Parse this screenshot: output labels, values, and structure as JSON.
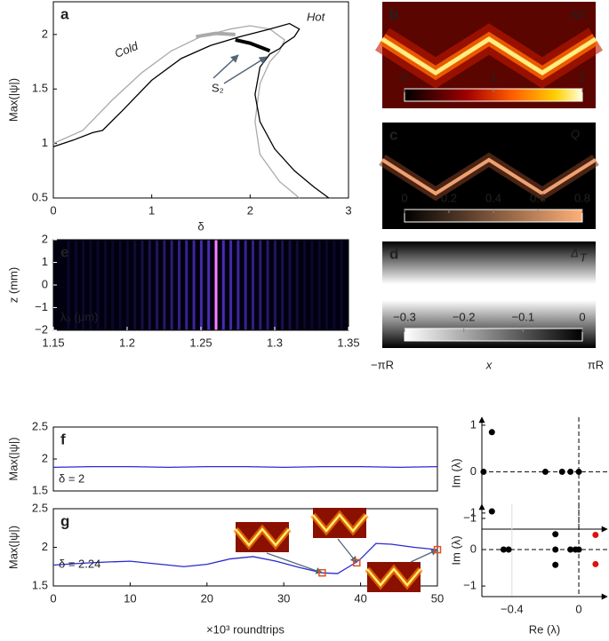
{
  "chart_data": [
    {
      "type": "line",
      "label": "a",
      "xlabel": "δ",
      "ylabel": "Max(|ψ|)",
      "xlim": [
        0,
        3
      ],
      "xticks": [
        0,
        1,
        2,
        3
      ],
      "ylim": [
        0.5,
        2.3
      ],
      "yticks": [
        0.5,
        1,
        1.5,
        2
      ],
      "annotations": [
        "Cold",
        "Hot",
        "S₂"
      ],
      "series": [
        {
          "name": "Cold",
          "color": "#aaaaaa",
          "x": [
            0,
            0.3,
            0.6,
            0.9,
            1.2,
            1.5,
            1.8,
            2.0,
            2.2,
            2.35,
            2.3,
            2.2,
            2.1,
            2.05,
            2.1,
            2.3,
            2.5
          ],
          "values": [
            1.0,
            1.12,
            1.4,
            1.65,
            1.85,
            1.98,
            2.05,
            2.08,
            2.05,
            1.95,
            1.85,
            1.75,
            1.55,
            1.2,
            0.9,
            0.65,
            0.5
          ]
        },
        {
          "name": "Hot",
          "color": "#000000",
          "x": [
            0,
            0.2,
            0.4,
            0.5,
            0.7,
            1.0,
            1.3,
            1.6,
            1.9,
            2.2,
            2.4,
            2.5,
            2.45,
            2.35,
            2.3,
            2.2,
            2.1,
            2.05,
            2.1,
            2.25,
            2.45,
            2.65,
            2.8
          ],
          "values": [
            0.97,
            1.03,
            1.1,
            1.12,
            1.3,
            1.58,
            1.78,
            1.9,
            1.98,
            2.05,
            2.1,
            2.05,
            1.98,
            1.92,
            1.87,
            1.82,
            1.7,
            1.45,
            1.2,
            0.95,
            0.75,
            0.6,
            0.5
          ]
        },
        {
          "color": "#aaaaaa",
          "width": 4,
          "x": [
            1.45,
            1.65,
            1.85
          ],
          "values": [
            1.98,
            2.01,
            2.0
          ]
        },
        {
          "color": "#000000",
          "width": 4,
          "x": [
            1.85,
            2.0,
            2.2
          ],
          "values": [
            1.95,
            1.92,
            1.85
          ]
        }
      ]
    },
    {
      "type": "heatmap",
      "label": "b",
      "title": "|ψ|",
      "colorbar_ticks": [
        0,
        1,
        2
      ]
    },
    {
      "type": "heatmap",
      "label": "c",
      "title": "Q",
      "colorbar_ticks": [
        0,
        0.2,
        0.4,
        0.6,
        0.8
      ]
    },
    {
      "type": "heatmap",
      "label": "d",
      "title": "Δ",
      "title_sub": "T",
      "colorbar_ticks": [
        {
          "value": -0.3,
          "label": "−0.3"
        },
        {
          "value": -0.2,
          "label": "−0.2"
        },
        {
          "value": -0.1,
          "label": "−0.1"
        },
        0
      ],
      "xlabel": "x",
      "xtick_labels": [
        "−πR",
        "πR"
      ]
    },
    {
      "type": "heatmap",
      "label": "e",
      "ylabel": "z (mm)",
      "annotation": "λ₀ (μm)",
      "xlim": [
        1.15,
        1.35
      ],
      "xticks": [
        1.15,
        1.2,
        1.25,
        1.3,
        1.35
      ],
      "ylim": [
        -2,
        2
      ],
      "yticks": [
        {
          "value": -2,
          "label": "−2"
        },
        {
          "value": -1,
          "label": "−1"
        },
        0,
        1,
        2
      ]
    },
    {
      "type": "line",
      "label": "f",
      "ylabel": "Max(|ψ|)",
      "annotations": [
        "δ = 2"
      ],
      "xlim": [
        0,
        50
      ],
      "ylim": [
        1.5,
        2.5
      ],
      "yticks": [
        1.5,
        2,
        2.5
      ],
      "series": [
        {
          "color": "#2a2ad0",
          "x": [
            0,
            5,
            10,
            15,
            20,
            25,
            30,
            35,
            40,
            45,
            50
          ],
          "values": [
            1.87,
            1.88,
            1.88,
            1.87,
            1.88,
            1.88,
            1.87,
            1.88,
            1.88,
            1.87,
            1.88
          ]
        }
      ]
    },
    {
      "type": "line",
      "label": "g",
      "ylabel": "Max(|ψ|)",
      "xlabel": "×10³ roundtrips",
      "annotations": [
        "δ = 2.24"
      ],
      "xlim": [
        0,
        50
      ],
      "xticks": [
        0,
        10,
        20,
        30,
        40,
        50
      ],
      "ylim": [
        1.5,
        2.5
      ],
      "yticks": [
        1.5,
        2,
        2.5
      ],
      "series": [
        {
          "color": "#2a2ad0",
          "x": [
            0,
            3,
            7,
            10,
            13,
            17,
            20,
            23,
            26,
            29,
            32,
            35,
            37,
            39,
            40,
            42,
            44,
            47,
            50
          ],
          "values": [
            1.77,
            1.79,
            1.81,
            1.82,
            1.79,
            1.75,
            1.78,
            1.85,
            1.88,
            1.82,
            1.74,
            1.67,
            1.66,
            1.78,
            1.85,
            2.05,
            2.04,
            2.0,
            1.97
          ]
        }
      ],
      "markers": {
        "color": "#e05020",
        "x": [
          35,
          39.5,
          50
        ],
        "values": [
          1.67,
          1.8,
          1.97
        ]
      }
    },
    {
      "type": "scatter",
      "ylabel": "Im (λ)",
      "xlim": [
        -0.58,
        0.17
      ],
      "ylim": [
        -1.23,
        1.17
      ],
      "yticks": [
        {
          "value": -1,
          "label": "−1"
        },
        0,
        1
      ],
      "series": [
        {
          "color": "#000000",
          "x": [
            -0.52,
            -0.52,
            -0.57,
            -0.2,
            -0.1,
            -0.05,
            0
          ],
          "values": [
            0.85,
            -0.85,
            0,
            0,
            0,
            0,
            0
          ]
        }
      ]
    },
    {
      "type": "scatter",
      "ylabel": "Im (λ)",
      "xlabel": "Re (λ)",
      "xlim": [
        -0.58,
        0.17
      ],
      "ylim": [
        -1.29,
        1.24
      ],
      "xticks": [
        {
          "value": -0.4,
          "label": "−0.4"
        },
        0
      ],
      "yticks": [
        {
          "value": -1,
          "label": "−1"
        },
        0,
        1
      ],
      "series": [
        {
          "color": "#000000",
          "x": [
            -0.45,
            -0.42,
            -0.14,
            -0.14,
            -0.14,
            -0.05,
            -0.02,
            0
          ],
          "values": [
            0,
            0,
            0.42,
            -0.42,
            0,
            0,
            0,
            0
          ]
        },
        {
          "color": "#e01010",
          "x": [
            0.1,
            0.1
          ],
          "values": [
            0.4,
            -0.4
          ]
        }
      ]
    }
  ]
}
